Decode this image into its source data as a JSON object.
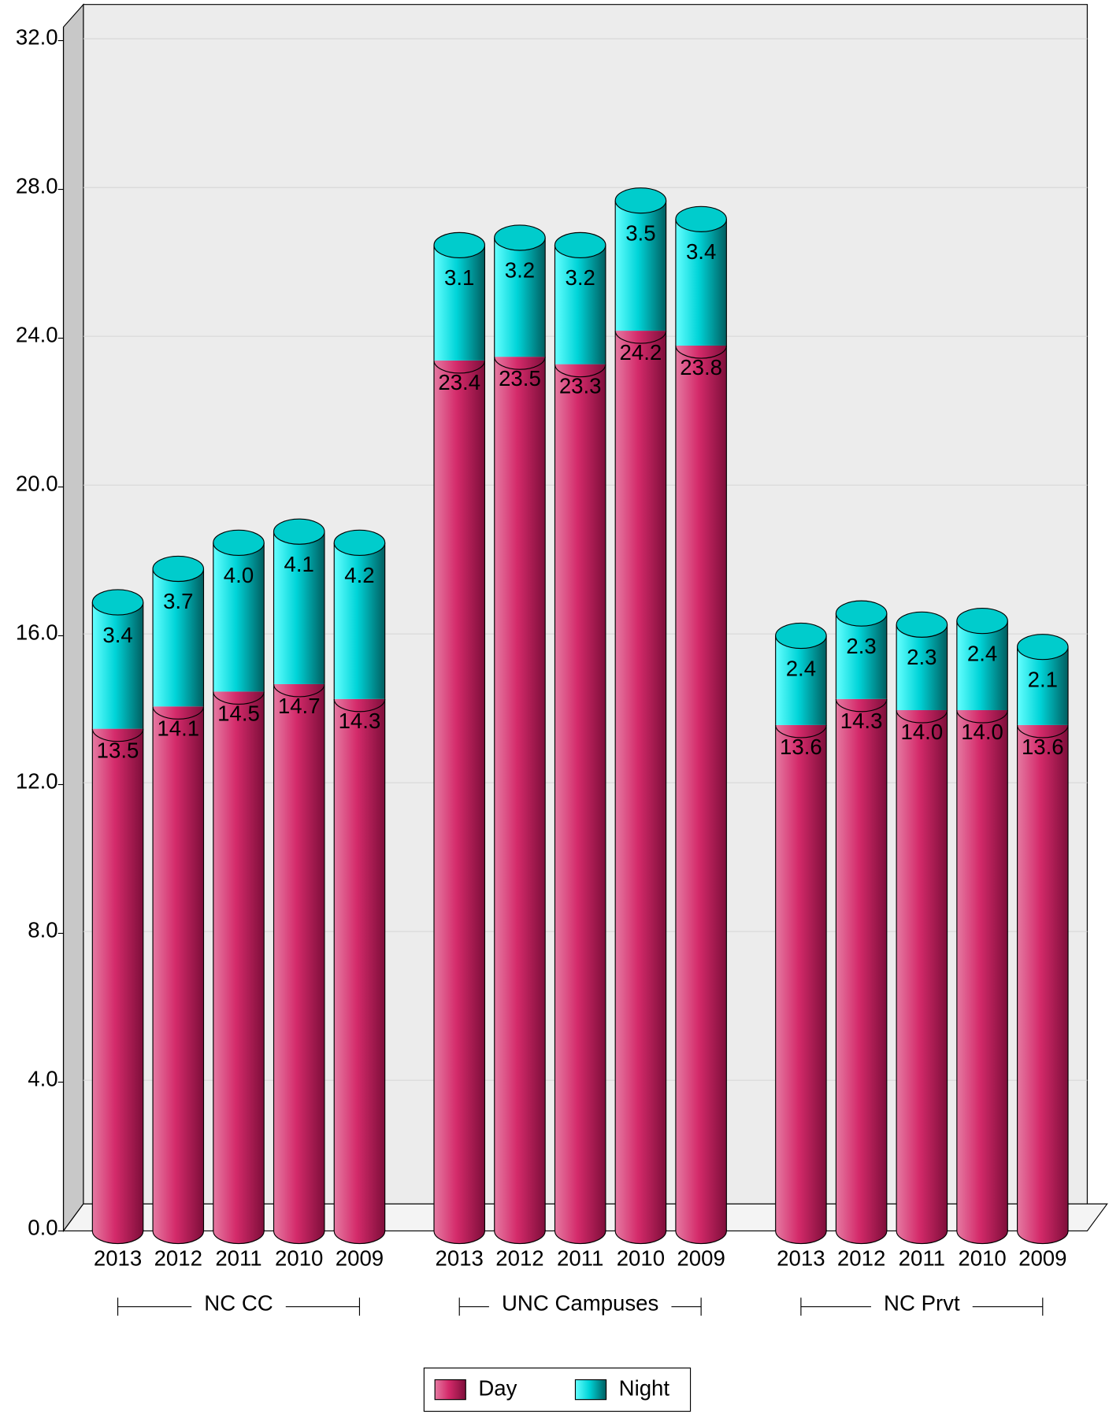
{
  "chart_data": {
    "type": "bar",
    "categories": [
      "2013",
      "2012",
      "2011",
      "2010",
      "2009",
      "2013",
      "2012",
      "2011",
      "2010",
      "2009",
      "2013",
      "2012",
      "2011",
      "2010",
      "2009"
    ],
    "groups": [
      "NC CC",
      "UNC Campuses",
      "NC Prvt"
    ],
    "series": [
      {
        "name": "Day",
        "color": "#d42a6a",
        "values": [
          13.5,
          14.1,
          14.5,
          14.7,
          14.3,
          23.4,
          23.5,
          23.3,
          24.2,
          23.8,
          13.6,
          14.3,
          14.0,
          14.0,
          13.6
        ],
        "value_labels": [
          "13.5",
          "14.1",
          "14.5",
          "14.7",
          "14.3",
          "23.4",
          "23.5",
          "23.3",
          "24.2",
          "23.8",
          "13.6",
          "14.3",
          "14.0",
          "14.0",
          "13.6"
        ]
      },
      {
        "name": "Night",
        "color": "#00d4d8",
        "values": [
          3.4,
          3.7,
          4.0,
          4.1,
          4.2,
          3.1,
          3.2,
          3.2,
          3.5,
          3.4,
          2.4,
          2.3,
          2.3,
          2.4,
          2.1
        ],
        "value_labels": [
          "3.4",
          "3.7",
          "4.0",
          "4.1",
          "4.2",
          "3.1",
          "3.2",
          "3.2",
          "3.5",
          "3.4",
          "2.4",
          "2.3",
          "2.3",
          "2.4",
          "2.1"
        ]
      }
    ],
    "stacked": true,
    "ylim": [
      0,
      32
    ],
    "yticks": [
      {
        "value": 0,
        "label": "0.0"
      },
      {
        "value": 4,
        "label": "4.0"
      },
      {
        "value": 8,
        "label": "8.0"
      },
      {
        "value": 12,
        "label": "12.0"
      },
      {
        "value": 16,
        "label": "16.0"
      },
      {
        "value": 20,
        "label": "20.0"
      },
      {
        "value": 24,
        "label": "24.0"
      },
      {
        "value": 28,
        "label": "28.0"
      },
      {
        "value": 32,
        "label": "32.0"
      }
    ],
    "grid": true
  }
}
